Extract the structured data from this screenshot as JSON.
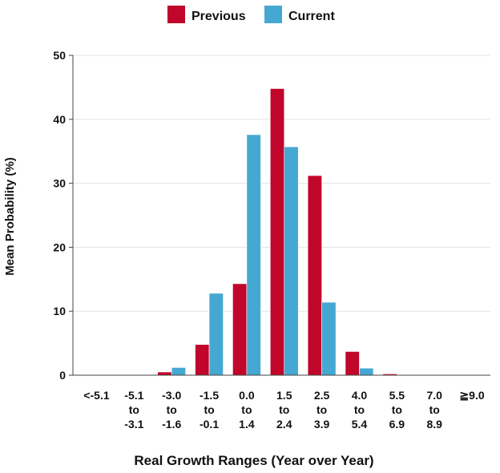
{
  "chart_data": {
    "type": "bar",
    "xlabel": "Real Growth Ranges (Year over Year)",
    "ylabel": "Mean Probability (%)",
    "ylim": [
      0,
      50
    ],
    "yticks": [
      0,
      10,
      20,
      30,
      40,
      50
    ],
    "grid": true,
    "legend_position": "top-center",
    "categories": [
      [
        "<-5.1"
      ],
      [
        "-5.1",
        "to",
        "-3.1"
      ],
      [
        "-3.0",
        "to",
        "-1.6"
      ],
      [
        "-1.5",
        "to",
        "-0.1"
      ],
      [
        "0.0",
        "to",
        "1.4"
      ],
      [
        "1.5",
        "to",
        "2.4"
      ],
      [
        "2.5",
        "to",
        "3.9"
      ],
      [
        "4.0",
        "to",
        "5.4"
      ],
      [
        "5.5",
        "to",
        "6.9"
      ],
      [
        "7.0",
        "to",
        "8.9"
      ],
      [
        "≧9.0"
      ]
    ],
    "series": [
      {
        "name": "Previous",
        "color": "#c0062b",
        "values": [
          0.1,
          0.1,
          0.5,
          4.8,
          14.3,
          44.8,
          31.2,
          3.7,
          0.2,
          0.1,
          0.1
        ]
      },
      {
        "name": "Current",
        "color": "#45a8d2",
        "values": [
          0.1,
          0.1,
          1.2,
          12.8,
          37.6,
          35.7,
          11.4,
          1.1,
          0.1,
          0.0,
          0.0
        ]
      }
    ]
  }
}
